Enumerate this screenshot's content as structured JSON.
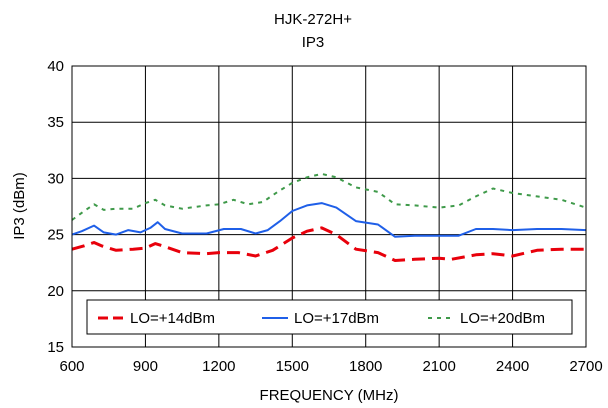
{
  "chart_data": {
    "type": "line",
    "title": "HJK-272H+",
    "subtitle": "IP3",
    "xlabel": "FREQUENCY (MHz)",
    "ylabel": "IP3 (dBm)",
    "xlim": [
      600,
      2700
    ],
    "ylim": [
      15,
      40
    ],
    "xticks": [
      "600",
      "900",
      "1200",
      "1500",
      "1800",
      "2100",
      "2400",
      "2700"
    ],
    "yticks": [
      "15",
      "20",
      "25",
      "30",
      "35",
      "40"
    ],
    "grid": true,
    "legend_position": "bottom-center",
    "series": [
      {
        "name": "LO=+14dBm",
        "color": "#e8000b",
        "style": "dashed",
        "points": [
          [
            600,
            23.7
          ],
          [
            650,
            24.0
          ],
          [
            690,
            24.3
          ],
          [
            720,
            24.0
          ],
          [
            780,
            23.6
          ],
          [
            850,
            23.7
          ],
          [
            900,
            23.8
          ],
          [
            940,
            24.2
          ],
          [
            970,
            24.0
          ],
          [
            1050,
            23.4
          ],
          [
            1150,
            23.3
          ],
          [
            1200,
            23.4
          ],
          [
            1280,
            23.4
          ],
          [
            1350,
            23.1
          ],
          [
            1420,
            23.6
          ],
          [
            1500,
            24.7
          ],
          [
            1560,
            25.3
          ],
          [
            1620,
            25.6
          ],
          [
            1680,
            25.0
          ],
          [
            1760,
            23.7
          ],
          [
            1850,
            23.4
          ],
          [
            1920,
            22.7
          ],
          [
            2000,
            22.8
          ],
          [
            2100,
            22.9
          ],
          [
            2150,
            22.8
          ],
          [
            2250,
            23.2
          ],
          [
            2320,
            23.3
          ],
          [
            2400,
            23.1
          ],
          [
            2500,
            23.6
          ],
          [
            2600,
            23.7
          ],
          [
            2700,
            23.7
          ]
        ]
      },
      {
        "name": "LO=+17dBm",
        "color": "#1f5fe8",
        "style": "solid",
        "points": [
          [
            600,
            25.0
          ],
          [
            640,
            25.3
          ],
          [
            690,
            25.8
          ],
          [
            730,
            25.2
          ],
          [
            780,
            25.0
          ],
          [
            830,
            25.4
          ],
          [
            880,
            25.2
          ],
          [
            920,
            25.6
          ],
          [
            950,
            26.1
          ],
          [
            980,
            25.5
          ],
          [
            1050,
            25.1
          ],
          [
            1150,
            25.1
          ],
          [
            1220,
            25.5
          ],
          [
            1290,
            25.5
          ],
          [
            1350,
            25.1
          ],
          [
            1400,
            25.4
          ],
          [
            1450,
            26.2
          ],
          [
            1500,
            27.1
          ],
          [
            1560,
            27.6
          ],
          [
            1620,
            27.8
          ],
          [
            1680,
            27.4
          ],
          [
            1760,
            26.2
          ],
          [
            1850,
            25.9
          ],
          [
            1920,
            24.8
          ],
          [
            2000,
            24.9
          ],
          [
            2100,
            24.9
          ],
          [
            2180,
            24.9
          ],
          [
            2250,
            25.5
          ],
          [
            2320,
            25.5
          ],
          [
            2400,
            25.4
          ],
          [
            2500,
            25.5
          ],
          [
            2600,
            25.5
          ],
          [
            2700,
            25.4
          ]
        ]
      },
      {
        "name": "LO=+20dBm",
        "color": "#3f9a4a",
        "style": "dotted",
        "points": [
          [
            600,
            26.3
          ],
          [
            650,
            27.1
          ],
          [
            690,
            27.7
          ],
          [
            730,
            27.2
          ],
          [
            780,
            27.3
          ],
          [
            850,
            27.3
          ],
          [
            900,
            27.8
          ],
          [
            940,
            28.1
          ],
          [
            980,
            27.6
          ],
          [
            1050,
            27.3
          ],
          [
            1150,
            27.6
          ],
          [
            1200,
            27.7
          ],
          [
            1260,
            28.1
          ],
          [
            1320,
            27.7
          ],
          [
            1380,
            27.9
          ],
          [
            1440,
            28.8
          ],
          [
            1500,
            29.6
          ],
          [
            1560,
            30.1
          ],
          [
            1620,
            30.4
          ],
          [
            1680,
            30.1
          ],
          [
            1760,
            29.2
          ],
          [
            1850,
            28.8
          ],
          [
            1920,
            27.7
          ],
          [
            2000,
            27.6
          ],
          [
            2100,
            27.4
          ],
          [
            2180,
            27.6
          ],
          [
            2250,
            28.4
          ],
          [
            2320,
            29.1
          ],
          [
            2400,
            28.7
          ],
          [
            2500,
            28.4
          ],
          [
            2600,
            28.1
          ],
          [
            2700,
            27.4
          ]
        ]
      }
    ]
  }
}
